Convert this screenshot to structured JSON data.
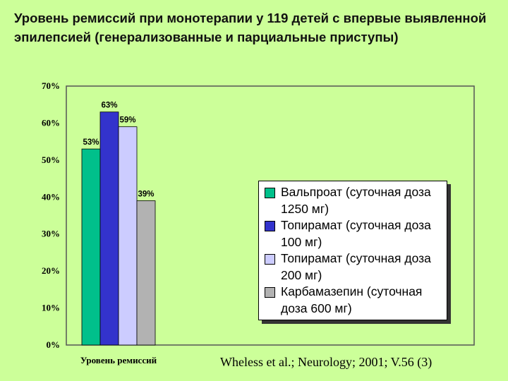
{
  "slide": {
    "title": "Уровень ремиссий при монотерапии у 119 детей с впервые выявленной эпилепсией (генерализованные и парциальные приступы)",
    "source": "Wheless et al.; Neurology; 2001; V.56 (3)"
  },
  "chart_data": {
    "type": "bar",
    "title": "",
    "xlabel": "Уровень ремиссий",
    "ylabel": "",
    "ylim": [
      0,
      70
    ],
    "yticks": [
      "0%",
      "10%",
      "20%",
      "30%",
      "40%",
      "50%",
      "60%",
      "70%"
    ],
    "categories": [
      "Уровень ремиссий"
    ],
    "series": [
      {
        "name": "Вальпроат (суточная доза 1250 мг)",
        "values": [
          53
        ],
        "label": "53%",
        "color": "#00c08b"
      },
      {
        "name": "Топирамат (суточная доза 100 мг)",
        "values": [
          63
        ],
        "label": "63%",
        "color": "#3333cc"
      },
      {
        "name": "Топирамат (суточная доза 200 мг)",
        "values": [
          59
        ],
        "label": "59%",
        "color": "#ccccff"
      },
      {
        "name": "Карбамазепин (суточная доза 600 мг)",
        "values": [
          39
        ],
        "label": "39%",
        "color": "#b2b2b2"
      }
    ],
    "grid": false,
    "legend_position": "right",
    "plot_background": "#ccff99"
  }
}
